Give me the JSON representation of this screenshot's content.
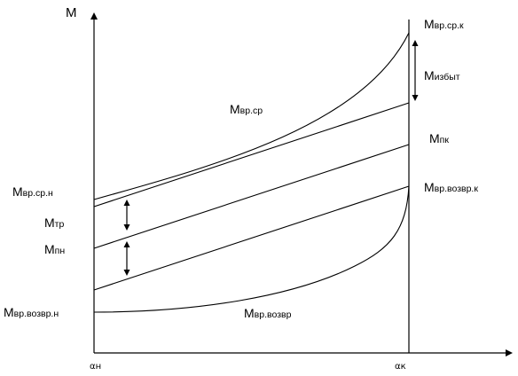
{
  "axes": {
    "y_label": "M",
    "x_start_label": "αн",
    "x_end_label": "αк"
  },
  "labels": {
    "m_vr_sr_k": {
      "main": "M",
      "sub": "вр.ср.к"
    },
    "m_izbyt": {
      "main": "M",
      "sub": "избыт"
    },
    "m_vr_sr": {
      "main": "M",
      "sub": "вр.ср"
    },
    "m_pk": {
      "main": "M",
      "sub": "пк"
    },
    "m_vr_vozvr_k": {
      "main": "M",
      "sub": "вр.возвр.к"
    },
    "m_vr_sr_n": {
      "main": "M",
      "sub": "вр.ср.н"
    },
    "m_tr": {
      "main": "M",
      "sub": "тр"
    },
    "m_pn": {
      "main": "M",
      "sub": "пн"
    },
    "m_vr_vozvr_n": {
      "main": "M",
      "sub": "вр.возвр.н"
    },
    "m_vr_vozvr": {
      "main": "M",
      "sub": "вр.возвр"
    }
  }
}
